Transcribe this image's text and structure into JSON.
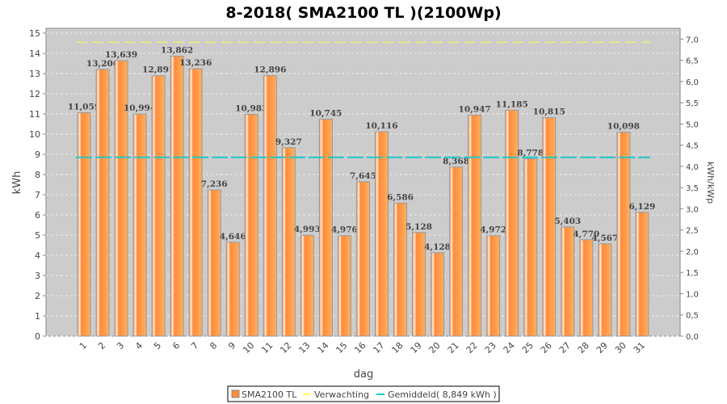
{
  "chart_data": {
    "type": "bar",
    "title": "8-2018( SMA2100 TL )(2100Wp)",
    "xlabel": "dag",
    "ylabel": "kWh",
    "y2label": "kWh/kWp",
    "ylim": [
      0,
      15
    ],
    "y2lim": [
      0,
      7.14
    ],
    "yticks": [
      0,
      1,
      2,
      3,
      4,
      5,
      6,
      7,
      8,
      9,
      10,
      11,
      12,
      13,
      14,
      15
    ],
    "y2ticks": [
      "0,0",
      "0,5",
      "1,0",
      "1,5",
      "2,0",
      "2,5",
      "3,0",
      "3,5",
      "4,0",
      "4,5",
      "5,0",
      "5,5",
      "6,0",
      "6,5",
      "7,0"
    ],
    "categories": [
      "1",
      "2",
      "3",
      "4",
      "5",
      "6",
      "7",
      "8",
      "9",
      "10",
      "11",
      "12",
      "13",
      "14",
      "15",
      "16",
      "17",
      "18",
      "19",
      "20",
      "21",
      "22",
      "23",
      "24",
      "25",
      "26",
      "27",
      "28",
      "29",
      "30",
      "31"
    ],
    "series": [
      {
        "name": "SMA2100 TL",
        "type": "bar",
        "color": "#ff8c3c",
        "values": [
          11.059,
          13.206,
          13.639,
          10.994,
          12.891,
          13.862,
          13.236,
          7.236,
          4.646,
          10.983,
          12.896,
          9.327,
          4.993,
          10.745,
          4.976,
          7.645,
          10.116,
          6.586,
          5.128,
          4.128,
          8.368,
          10.947,
          4.972,
          11.185,
          8.778,
          10.815,
          5.403,
          4.77,
          4.567,
          10.098,
          6.129
        ],
        "labels": [
          "11,059",
          "13,206",
          "13,639",
          "10,994",
          "12,891",
          "13,862",
          "13,236",
          "7,236",
          "4,646",
          "10,983",
          "12,896",
          "9,327",
          "4,993",
          "10,745",
          "4,976",
          "7,645",
          "10,116",
          "6,586",
          "5,128",
          "4,128",
          "8,368",
          "10,947",
          "4,972",
          "11,185",
          "8,778",
          "10,815",
          "5,403",
          "4,770",
          "4,567",
          "10,098",
          "6,129"
        ]
      },
      {
        "name": "Verwachting",
        "type": "line",
        "color": "#e8e88a",
        "value": 14.55
      },
      {
        "name": "Gemiddeld( 8,849 kWh )",
        "type": "line",
        "color": "#20c8c8",
        "value": 8.849
      }
    ],
    "grid": true,
    "legend": "bottom-center"
  }
}
